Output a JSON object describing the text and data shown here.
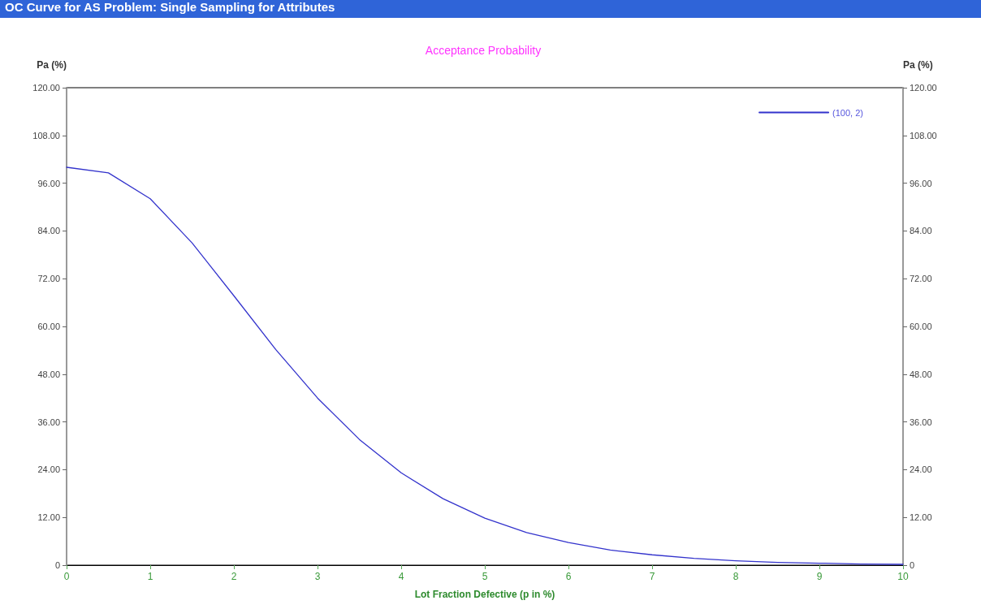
{
  "chart_data": {
    "type": "line",
    "title": "Acceptance Probability",
    "xlabel": "Lot Fraction Defective (p in %)",
    "ylabel": "Pa (%)",
    "y2label": "Pa (%)",
    "annotations": [
      "OC Curve for AS Problem: Single Sampling for Attributes"
    ],
    "x": [
      0,
      0.5,
      1,
      1.5,
      2,
      2.5,
      3,
      3.5,
      4,
      4.5,
      5,
      5.5,
      6,
      6.5,
      7,
      7.5,
      8,
      8.5,
      9,
      9.5,
      10
    ],
    "series": [
      {
        "name": "(100, 2)",
        "color": "#3333cc",
        "values": [
          100,
          98.6,
          92.1,
          81.0,
          67.7,
          54.2,
          42.0,
          31.6,
          23.2,
          16.7,
          11.8,
          8.2,
          5.7,
          3.8,
          2.6,
          1.7,
          1.1,
          0.7,
          0.5,
          0.3,
          0.2
        ]
      }
    ],
    "xlim": [
      0,
      10
    ],
    "xticks": [
      0,
      1,
      2,
      3,
      4,
      5,
      6,
      7,
      8,
      9,
      10
    ],
    "ylim": [
      0,
      120
    ],
    "yticks": [
      {
        "value": 0,
        "label": "0"
      },
      {
        "value": 12,
        "label": "12.00"
      },
      {
        "value": 24,
        "label": "24.00"
      },
      {
        "value": 36,
        "label": "36.00"
      },
      {
        "value": 48,
        "label": "48.00"
      },
      {
        "value": 60,
        "label": "60.00"
      },
      {
        "value": 72,
        "label": "72.00"
      },
      {
        "value": 84,
        "label": "84.00"
      },
      {
        "value": 96,
        "label": "96.00"
      },
      {
        "value": 108,
        "label": "108.00"
      },
      {
        "value": 120,
        "label": "120.00"
      }
    ],
    "y2lim": [
      0,
      120
    ],
    "y2ticks": [
      {
        "value": 0,
        "label": "0"
      },
      {
        "value": 12,
        "label": "12.00"
      },
      {
        "value": 24,
        "label": "24.00"
      },
      {
        "value": 36,
        "label": "36.00"
      },
      {
        "value": 48,
        "label": "48.00"
      },
      {
        "value": 60,
        "label": "60.00"
      },
      {
        "value": 72,
        "label": "72.00"
      },
      {
        "value": 84,
        "label": "84.00"
      },
      {
        "value": 96,
        "label": "96.00"
      },
      {
        "value": 108,
        "label": "108.00"
      },
      {
        "value": 120,
        "label": "120.00"
      }
    ],
    "grid": false,
    "legend": "top right",
    "marker": "none",
    "line_style": "solid"
  }
}
